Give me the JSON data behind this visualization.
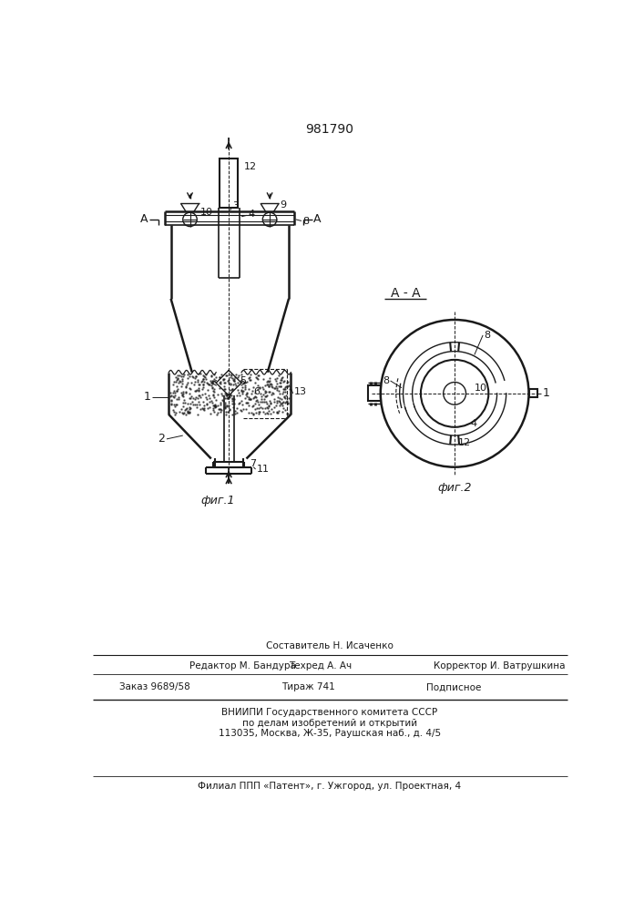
{
  "title": "981790",
  "bg_color": "#ffffff",
  "line_color": "#1a1a1a",
  "fig1_label": "фиг.1",
  "fig2_label": "фиг.2",
  "section_label": "A - A",
  "footer_line1": "Составитель Н. Исаченко",
  "footer_line2a": "Редактор М. Бандура",
  "footer_line2b": "Техред А. Ач",
  "footer_line2c": "Корректор И. Ватрушкина",
  "footer_line3a": "Заказ 9689/58",
  "footer_line3b": "Тираж 741",
  "footer_line3c": "Подписное",
  "footer_line4": "ВНИИПИ Государственного комитета СССР",
  "footer_line5": "по делам изобретений и открытий",
  "footer_line6": "113035, Москва, Ж-35, Раушская наб., д. 4/5",
  "footer_line7": "Филиал ППП «Патент», г. Ужгород, ул. Проектная, 4"
}
